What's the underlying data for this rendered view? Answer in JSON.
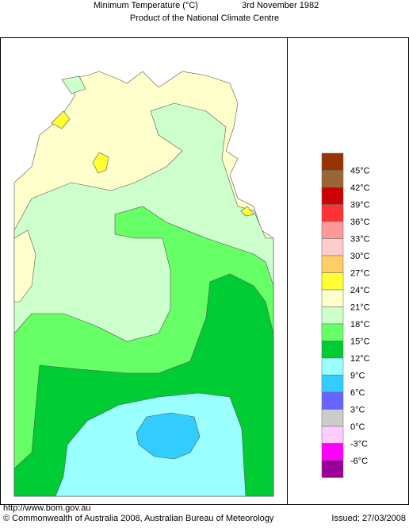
{
  "header": {
    "title": "Minimum Temperature (°C)",
    "date": "3rd November 1982",
    "subtitle": "Product of the National Climate Centre"
  },
  "legend": {
    "labels": [
      "45°C",
      "42°C",
      "39°C",
      "36°C",
      "33°C",
      "30°C",
      "27°C",
      "24°C",
      "21°C",
      "18°C",
      "15°C",
      "12°C",
      "9°C",
      "6°C",
      "3°C",
      "0°C",
      "-3°C",
      "-6°C"
    ],
    "colors": [
      "#993300",
      "#996633",
      "#cc0000",
      "#ff3333",
      "#ff9999",
      "#ffcccc",
      "#ffcc66",
      "#ffff33",
      "#ffffcc",
      "#ccffcc",
      "#66ff66",
      "#00cc33",
      "#99ffff",
      "#33ccff",
      "#6666ff",
      "#cccccc",
      "#ffccff",
      "#ff00ff",
      "#990099"
    ]
  },
  "footer": {
    "url": "http://www.bom.gov.au",
    "copyright": "© Commonwealth of Australia 2008, Australian Bureau of Meteorology",
    "issued": "Issued: 27/03/2008"
  }
}
